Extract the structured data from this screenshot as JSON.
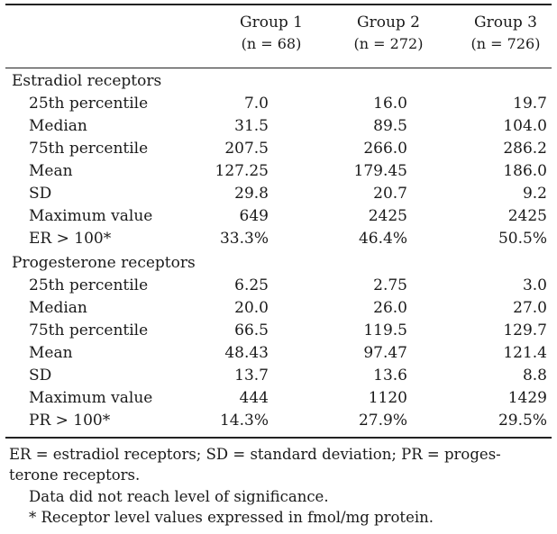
{
  "columns": [
    {
      "name": "Group 1",
      "n": "(n = 68)"
    },
    {
      "name": "Group 2",
      "n": "(n = 272)"
    },
    {
      "name": "Group 3",
      "n": "(n = 726)"
    }
  ],
  "sections": [
    {
      "title": "Estradiol receptors",
      "rows": [
        {
          "label": "25th percentile",
          "values": [
            "7.0",
            "16.0",
            "19.7"
          ]
        },
        {
          "label": "Median",
          "values": [
            "31.5",
            "89.5",
            "104.0"
          ]
        },
        {
          "label": "75th percentile",
          "values": [
            "207.5",
            "266.0",
            "286.2"
          ]
        },
        {
          "label": "Mean",
          "values": [
            "127.25",
            "179.45",
            "186.0"
          ]
        },
        {
          "label": "SD",
          "values": [
            "29.8",
            "20.7",
            "9.2"
          ]
        },
        {
          "label": "Maximum value",
          "values": [
            "649",
            "2425",
            "2425"
          ]
        },
        {
          "label": "ER > 100*",
          "values": [
            "33.3%",
            "46.4%",
            "50.5%"
          ]
        }
      ]
    },
    {
      "title": "Progesterone receptors",
      "rows": [
        {
          "label": "25th percentile",
          "values": [
            "6.25",
            "2.75",
            "3.0"
          ]
        },
        {
          "label": "Median",
          "values": [
            "20.0",
            "26.0",
            "27.0"
          ]
        },
        {
          "label": "75th percentile",
          "values": [
            "66.5",
            "119.5",
            "129.7"
          ]
        },
        {
          "label": "Mean",
          "values": [
            "48.43",
            "97.47",
            "121.4"
          ]
        },
        {
          "label": "SD",
          "values": [
            "13.7",
            "13.6",
            "8.8"
          ]
        },
        {
          "label": "Maximum value",
          "values": [
            "444",
            "1120",
            "1429"
          ]
        },
        {
          "label": "PR > 100*",
          "values": [
            "14.3%",
            "27.9%",
            "29.5%"
          ]
        }
      ]
    }
  ],
  "footnotes": {
    "line1": "ER = estradiol receptors; SD = standard deviation; PR = proges-",
    "line2": "terone receptors.",
    "line3": "Data did not reach level of significance.",
    "line4": "* Receptor level values expressed in fmol/mg protein."
  }
}
